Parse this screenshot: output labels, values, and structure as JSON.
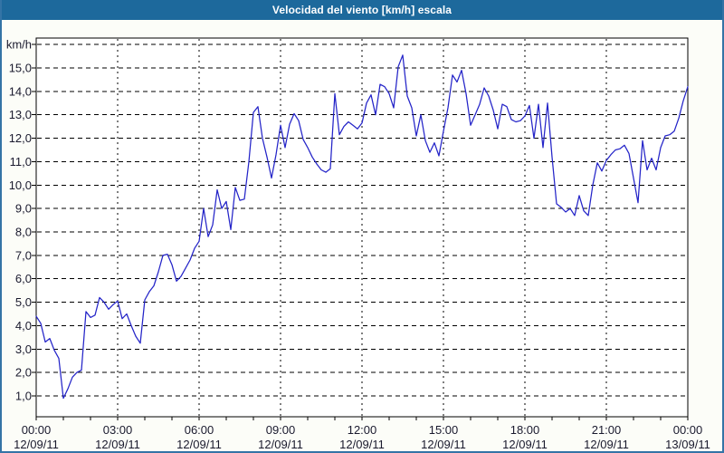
{
  "window": {
    "name": "wind-speed-chart-window"
  },
  "title_bar": {
    "title": "Velocidad del viento [km/h] escala"
  },
  "style": {
    "titlebar_bg": "#1d699c",
    "title_text_color": "#ffffff",
    "frame_border": "#3474a6",
    "window_bg": "#fcfdf8",
    "plot_bg": "#ffffff",
    "grid_color": "#000000",
    "axis_color": "#000000",
    "tick_text_color": "#1a1a2e",
    "line_color": "#2424c8"
  },
  "chart_data": {
    "type": "line",
    "title": "Velocidad del viento [km/h] escala",
    "ylabel": "km/h",
    "xlabel": "",
    "legend_position": "none",
    "grid": true,
    "ylim": [
      0.11,
      16.28
    ],
    "y_gridline_min": 1,
    "y_gridline_max": 16,
    "y_tick_values": [
      1,
      2,
      3,
      4,
      5,
      6,
      7,
      8,
      9,
      10,
      11,
      12,
      13,
      14,
      15
    ],
    "y_tick_labels": [
      "1,0",
      "2,0",
      "3,0",
      "4,0",
      "5,0",
      "6,0",
      "7,0",
      "8,0",
      "9,0",
      "10,0",
      "11,0",
      "12,0",
      "13,0",
      "14,0",
      "15,0"
    ],
    "y_unit_label": "km/h",
    "x_span_hours": 24,
    "x_minor_tick_interval_hours": 1,
    "x_major_tick_interval_hours": 3,
    "x_major_ticks": [
      {
        "time": "00:00",
        "date": "12/09/11"
      },
      {
        "time": "03:00",
        "date": "12/09/11"
      },
      {
        "time": "06:00",
        "date": "12/09/11"
      },
      {
        "time": "09:00",
        "date": "12/09/11"
      },
      {
        "time": "12:00",
        "date": "12/09/11"
      },
      {
        "time": "15:00",
        "date": "12/09/11"
      },
      {
        "time": "18:00",
        "date": "12/09/11"
      },
      {
        "time": "21:00",
        "date": "12/09/11"
      },
      {
        "time": "00:00",
        "date": "13/09/11"
      }
    ],
    "sample_interval_minutes": 10,
    "series": [
      {
        "name": "velocidad-del-viento-kmh",
        "color": "#2424c8",
        "values": [
          4.4,
          4.1,
          3.3,
          3.45,
          2.95,
          2.6,
          0.9,
          1.3,
          1.8,
          2.0,
          2.1,
          4.6,
          4.35,
          4.45,
          5.2,
          5.0,
          4.7,
          4.9,
          5.05,
          4.3,
          4.5,
          4.0,
          3.55,
          3.25,
          5.1,
          5.45,
          5.7,
          6.3,
          7.0,
          7.05,
          6.6,
          5.9,
          6.1,
          6.45,
          6.8,
          7.3,
          7.6,
          9.0,
          7.8,
          8.3,
          9.8,
          9.0,
          9.3,
          8.1,
          9.9,
          9.35,
          9.4,
          11.0,
          13.1,
          13.35,
          12.0,
          11.2,
          10.3,
          11.3,
          12.55,
          11.6,
          12.6,
          13.05,
          12.75,
          11.95,
          11.6,
          11.2,
          10.9,
          10.65,
          10.55,
          10.7,
          13.9,
          12.15,
          12.5,
          12.7,
          12.55,
          12.4,
          12.65,
          13.5,
          13.85,
          13.0,
          14.3,
          14.2,
          13.9,
          13.3,
          15.05,
          15.55,
          13.8,
          13.3,
          12.1,
          13.0,
          11.9,
          11.4,
          11.8,
          11.25,
          12.3,
          13.3,
          14.7,
          14.4,
          14.9,
          13.9,
          12.55,
          13.0,
          13.45,
          14.15,
          13.8,
          13.2,
          12.4,
          13.45,
          13.35,
          12.8,
          12.7,
          12.75,
          12.95,
          13.4,
          12.0,
          13.45,
          11.6,
          13.5,
          11.2,
          9.2,
          9.05,
          8.85,
          9.0,
          8.7,
          9.55,
          8.9,
          8.7,
          10.0,
          10.95,
          10.6,
          11.05,
          11.3,
          11.5,
          11.55,
          11.7,
          11.35,
          10.3,
          9.25,
          11.9,
          10.65,
          11.15,
          10.65,
          11.6,
          12.1,
          12.15,
          12.3,
          12.85,
          13.6,
          14.2
        ]
      }
    ]
  }
}
